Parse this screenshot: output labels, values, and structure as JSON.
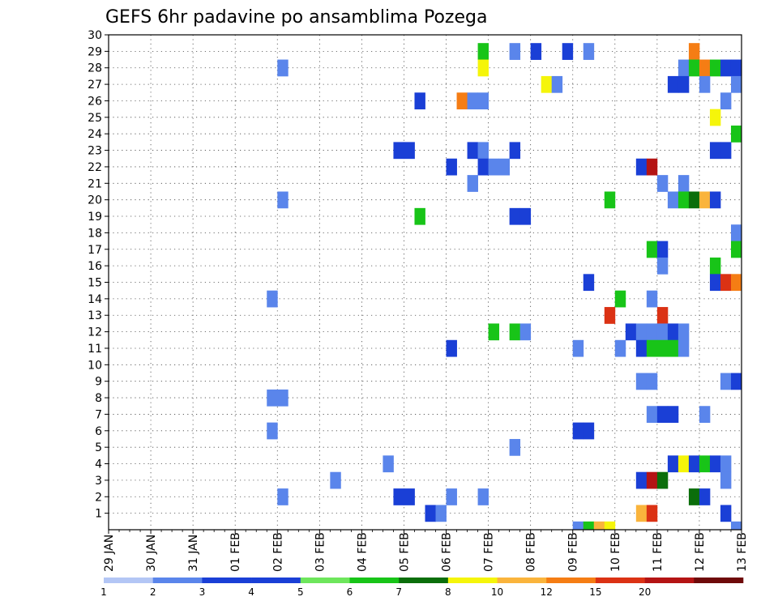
{
  "chart_data": {
    "type": "heatmap",
    "title": "GEFS 6hr padavine po ansamblima Pozega",
    "x_ticks": [
      "29 JAN",
      "30 JAN",
      "31 JAN",
      "01 FEB",
      "02 FEB",
      "03 FEB",
      "04 FEB",
      "05 FEB",
      "06 FEB",
      "07 FEB",
      "08 FEB",
      "09 FEB",
      "10 FEB",
      "11 FEB",
      "12 FEB",
      "13 FEB"
    ],
    "x_range": [
      "29 JAN 00Z",
      "13 FEB 00Z"
    ],
    "y_ticks": [
      1,
      2,
      3,
      4,
      5,
      6,
      7,
      8,
      9,
      10,
      11,
      12,
      13,
      14,
      15,
      16,
      17,
      18,
      19,
      20,
      21,
      22,
      23,
      24,
      25,
      26,
      27,
      28,
      29,
      30
    ],
    "y_range": [
      0,
      30
    ],
    "grid": "dotted",
    "legend_position": "bottom",
    "color_levels": [
      1,
      2,
      3,
      4,
      5,
      6,
      7,
      8,
      10,
      12,
      15,
      20
    ],
    "color_scale": [
      "#b3c6f5",
      "#5a85eb",
      "#1a3fd6",
      "#1a3fd6",
      "#6ee65c",
      "#18c418",
      "#0b6e0b",
      "#f5f50a",
      "#fab43c",
      "#f57d14",
      "#db3214",
      "#b41414",
      "#6e0a0a"
    ],
    "cells": [
      {
        "member": 29,
        "time": "06 FEB 18Z",
        "class": 5
      },
      {
        "member": 29,
        "time": "07 FEB 12Z",
        "class": 1
      },
      {
        "member": 29,
        "time": "08 FEB 00Z",
        "class": 2
      },
      {
        "member": 29,
        "time": "08 FEB 18Z",
        "class": 3
      },
      {
        "member": 29,
        "time": "09 FEB 06Z",
        "class": 1
      },
      {
        "member": 29,
        "time": "11 FEB 18Z",
        "class": 9
      },
      {
        "member": 28,
        "time": "02 FEB 00Z",
        "class": 1
      },
      {
        "member": 28,
        "time": "06 FEB 18Z",
        "class": 7
      },
      {
        "member": 28,
        "time": "11 FEB 12Z",
        "class": 1
      },
      {
        "member": 28,
        "time": "11 FEB 18Z",
        "class": 5
      },
      {
        "member": 28,
        "time": "12 FEB 00Z",
        "class": 9
      },
      {
        "member": 28,
        "time": "12 FEB 06Z",
        "class": 5
      },
      {
        "member": 28,
        "time": "12 FEB 12Z",
        "class": 3
      },
      {
        "member": 28,
        "time": "12 FEB 18Z",
        "class": 3
      },
      {
        "member": 27,
        "time": "08 FEB 06Z",
        "class": 7
      },
      {
        "member": 27,
        "time": "08 FEB 12Z",
        "class": 1
      },
      {
        "member": 27,
        "time": "11 FEB 06Z",
        "class": 3
      },
      {
        "member": 27,
        "time": "11 FEB 12Z",
        "class": 2
      },
      {
        "member": 27,
        "time": "12 FEB 00Z",
        "class": 1
      },
      {
        "member": 27,
        "time": "12 FEB 18Z",
        "class": 1
      },
      {
        "member": 26,
        "time": "05 FEB 06Z",
        "class": 2
      },
      {
        "member": 26,
        "time": "06 FEB 06Z",
        "class": 9
      },
      {
        "member": 26,
        "time": "06 FEB 12Z",
        "class": 1
      },
      {
        "member": 26,
        "time": "06 FEB 18Z",
        "class": 1
      },
      {
        "member": 26,
        "time": "12 FEB 12Z",
        "class": 1
      },
      {
        "member": 25,
        "time": "12 FEB 06Z",
        "class": 7
      },
      {
        "member": 24,
        "time": "12 FEB 18Z",
        "class": 5
      },
      {
        "member": 23,
        "time": "04 FEB 18Z",
        "class": 2
      },
      {
        "member": 23,
        "time": "05 FEB 00Z",
        "class": 2
      },
      {
        "member": 23,
        "time": "06 FEB 12Z",
        "class": 3
      },
      {
        "member": 23,
        "time": "06 FEB 18Z",
        "class": 1
      },
      {
        "member": 23,
        "time": "07 FEB 12Z",
        "class": 3
      },
      {
        "member": 23,
        "time": "12 FEB 06Z",
        "class": 2
      },
      {
        "member": 23,
        "time": "12 FEB 12Z",
        "class": 2
      },
      {
        "member": 22,
        "time": "06 FEB 00Z",
        "class": 3
      },
      {
        "member": 22,
        "time": "06 FEB 18Z",
        "class": 3
      },
      {
        "member": 22,
        "time": "07 FEB 00Z",
        "class": 1
      },
      {
        "member": 22,
        "time": "07 FEB 06Z",
        "class": 1
      },
      {
        "member": 22,
        "time": "10 FEB 12Z",
        "class": 2
      },
      {
        "member": 22,
        "time": "10 FEB 18Z",
        "class": 11
      },
      {
        "member": 21,
        "time": "06 FEB 12Z",
        "class": 1
      },
      {
        "member": 21,
        "time": "11 FEB 00Z",
        "class": 1
      },
      {
        "member": 21,
        "time": "11 FEB 12Z",
        "class": 1
      },
      {
        "member": 20,
        "time": "02 FEB 00Z",
        "class": 1
      },
      {
        "member": 20,
        "time": "09 FEB 18Z",
        "class": 5
      },
      {
        "member": 20,
        "time": "11 FEB 06Z",
        "class": 1
      },
      {
        "member": 20,
        "time": "11 FEB 12Z",
        "class": 5
      },
      {
        "member": 20,
        "time": "11 FEB 18Z",
        "class": 6
      },
      {
        "member": 20,
        "time": "12 FEB 00Z",
        "class": 8
      },
      {
        "member": 20,
        "time": "12 FEB 06Z",
        "class": 3
      },
      {
        "member": 19,
        "time": "05 FEB 06Z",
        "class": 5
      },
      {
        "member": 19,
        "time": "07 FEB 12Z",
        "class": 2
      },
      {
        "member": 19,
        "time": "07 FEB 18Z",
        "class": 3
      },
      {
        "member": 18,
        "time": "12 FEB 18Z",
        "class": 1
      },
      {
        "member": 17,
        "time": "10 FEB 18Z",
        "class": 5
      },
      {
        "member": 17,
        "time": "11 FEB 00Z",
        "class": 3
      },
      {
        "member": 17,
        "time": "12 FEB 18Z",
        "class": 5
      },
      {
        "member": 16,
        "time": "11 FEB 00Z",
        "class": 1
      },
      {
        "member": 16,
        "time": "12 FEB 06Z",
        "class": 5
      },
      {
        "member": 15,
        "time": "09 FEB 06Z",
        "class": 3
      },
      {
        "member": 15,
        "time": "12 FEB 06Z",
        "class": 2
      },
      {
        "member": 15,
        "time": "12 FEB 12Z",
        "class": 10
      },
      {
        "member": 15,
        "time": "12 FEB 18Z",
        "class": 9
      },
      {
        "member": 14,
        "time": "01 FEB 18Z",
        "class": 1
      },
      {
        "member": 14,
        "time": "10 FEB 00Z",
        "class": 5
      },
      {
        "member": 14,
        "time": "10 FEB 18Z",
        "class": 1
      },
      {
        "member": 13,
        "time": "09 FEB 18Z",
        "class": 10
      },
      {
        "member": 13,
        "time": "11 FEB 00Z",
        "class": 10
      },
      {
        "member": 12,
        "time": "07 FEB 00Z",
        "class": 5
      },
      {
        "member": 12,
        "time": "07 FEB 12Z",
        "class": 5
      },
      {
        "member": 12,
        "time": "07 FEB 18Z",
        "class": 1
      },
      {
        "member": 12,
        "time": "10 FEB 06Z",
        "class": 3
      },
      {
        "member": 12,
        "time": "10 FEB 12Z",
        "class": 1
      },
      {
        "member": 12,
        "time": "10 FEB 18Z",
        "class": 1
      },
      {
        "member": 12,
        "time": "11 FEB 00Z",
        "class": 1
      },
      {
        "member": 12,
        "time": "11 FEB 06Z",
        "class": 3
      },
      {
        "member": 12,
        "time": "11 FEB 12Z",
        "class": 1
      },
      {
        "member": 11,
        "time": "06 FEB 00Z",
        "class": 2
      },
      {
        "member": 11,
        "time": "09 FEB 00Z",
        "class": 1
      },
      {
        "member": 11,
        "time": "10 FEB 00Z",
        "class": 1
      },
      {
        "member": 11,
        "time": "10 FEB 12Z",
        "class": 2
      },
      {
        "member": 11,
        "time": "10 FEB 18Z",
        "class": 5
      },
      {
        "member": 11,
        "time": "11 FEB 00Z",
        "class": 5
      },
      {
        "member": 11,
        "time": "11 FEB 06Z",
        "class": 5
      },
      {
        "member": 11,
        "time": "11 FEB 12Z",
        "class": 1
      },
      {
        "member": 9,
        "time": "10 FEB 12Z",
        "class": 1
      },
      {
        "member": 9,
        "time": "10 FEB 18Z",
        "class": 1
      },
      {
        "member": 9,
        "time": "12 FEB 12Z",
        "class": 1
      },
      {
        "member": 9,
        "time": "12 FEB 18Z",
        "class": 3
      },
      {
        "member": 8,
        "time": "01 FEB 18Z",
        "class": 1
      },
      {
        "member": 8,
        "time": "02 FEB 00Z",
        "class": 1
      },
      {
        "member": 7,
        "time": "10 FEB 18Z",
        "class": 1
      },
      {
        "member": 7,
        "time": "11 FEB 00Z",
        "class": 3
      },
      {
        "member": 7,
        "time": "11 FEB 06Z",
        "class": 2
      },
      {
        "member": 7,
        "time": "12 FEB 00Z",
        "class": 1
      },
      {
        "member": 6,
        "time": "01 FEB 18Z",
        "class": 1
      },
      {
        "member": 6,
        "time": "09 FEB 00Z",
        "class": 2
      },
      {
        "member": 6,
        "time": "09 FEB 06Z",
        "class": 3
      },
      {
        "member": 5,
        "time": "07 FEB 12Z",
        "class": 1
      },
      {
        "member": 4,
        "time": "04 FEB 12Z",
        "class": 1
      },
      {
        "member": 4,
        "time": "11 FEB 06Z",
        "class": 3
      },
      {
        "member": 4,
        "time": "11 FEB 12Z",
        "class": 7
      },
      {
        "member": 4,
        "time": "11 FEB 18Z",
        "class": 2
      },
      {
        "member": 4,
        "time": "12 FEB 00Z",
        "class": 5
      },
      {
        "member": 4,
        "time": "12 FEB 06Z",
        "class": 2
      },
      {
        "member": 4,
        "time": "12 FEB 12Z",
        "class": 1
      },
      {
        "member": 3,
        "time": "03 FEB 06Z",
        "class": 1
      },
      {
        "member": 3,
        "time": "10 FEB 12Z",
        "class": 2
      },
      {
        "member": 3,
        "time": "10 FEB 18Z",
        "class": 11
      },
      {
        "member": 3,
        "time": "11 FEB 00Z",
        "class": 6
      },
      {
        "member": 3,
        "time": "12 FEB 12Z",
        "class": 1
      },
      {
        "member": 2,
        "time": "02 FEB 00Z",
        "class": 1
      },
      {
        "member": 2,
        "time": "04 FEB 18Z",
        "class": 2
      },
      {
        "member": 2,
        "time": "05 FEB 00Z",
        "class": 2
      },
      {
        "member": 2,
        "time": "06 FEB 00Z",
        "class": 1
      },
      {
        "member": 2,
        "time": "06 FEB 18Z",
        "class": 1
      },
      {
        "member": 2,
        "time": "11 FEB 18Z",
        "class": 6
      },
      {
        "member": 2,
        "time": "12 FEB 00Z",
        "class": 2
      },
      {
        "member": 1,
        "time": "05 FEB 12Z",
        "class": 3
      },
      {
        "member": 1,
        "time": "05 FEB 18Z",
        "class": 1
      },
      {
        "member": 1,
        "time": "10 FEB 12Z",
        "class": 8
      },
      {
        "member": 1,
        "time": "10 FEB 18Z",
        "class": 10
      },
      {
        "member": 1,
        "time": "12 FEB 12Z",
        "class": 3
      },
      {
        "member": 0,
        "time": "09 FEB 00Z",
        "class": 1
      },
      {
        "member": 0,
        "time": "09 FEB 06Z",
        "class": 5
      },
      {
        "member": 0,
        "time": "09 FEB 12Z",
        "class": 8
      },
      {
        "member": 0,
        "time": "09 FEB 18Z",
        "class": 7
      },
      {
        "member": 0,
        "time": "12 FEB 18Z",
        "class": 1
      }
    ]
  }
}
